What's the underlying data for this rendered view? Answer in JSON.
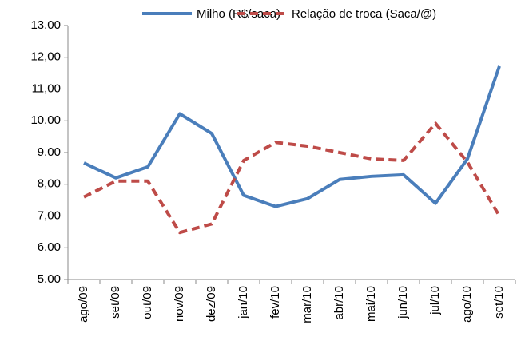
{
  "chart_data": {
    "type": "line",
    "categories": [
      "ago/09",
      "set/09",
      "out/09",
      "nov/09",
      "dez/09",
      "jan/10",
      "fev/10",
      "mar/10",
      "abr/10",
      "mai/10",
      "jun/10",
      "jul/10",
      "ago/10",
      "set/10"
    ],
    "series": [
      {
        "name": "Milho (R$/saca)",
        "color": "#4a7ebb",
        "dash": false,
        "values": [
          8.67,
          8.2,
          8.55,
          10.22,
          9.6,
          7.65,
          7.3,
          7.55,
          8.15,
          8.25,
          8.3,
          7.4,
          8.8,
          11.72
        ]
      },
      {
        "name": "Relação de troca (Saca/@)",
        "color": "#be4b48",
        "dash": true,
        "values": [
          7.6,
          8.1,
          8.1,
          6.48,
          6.75,
          8.75,
          9.32,
          9.2,
          9.0,
          8.8,
          8.75,
          9.92,
          8.7,
          7.0
        ]
      }
    ],
    "ylim": [
      5,
      13
    ],
    "yticks": [
      {
        "value": 5,
        "label": "5,00"
      },
      {
        "value": 6,
        "label": "6,00"
      },
      {
        "value": 7,
        "label": "7,00"
      },
      {
        "value": 8,
        "label": "8,00"
      },
      {
        "value": 9,
        "label": "9,00"
      },
      {
        "value": 10,
        "label": "10,00"
      },
      {
        "value": 11,
        "label": "11,00"
      },
      {
        "value": 12,
        "label": "12,00"
      },
      {
        "value": 13,
        "label": "13,00"
      }
    ],
    "grid": false,
    "legend": "top"
  }
}
